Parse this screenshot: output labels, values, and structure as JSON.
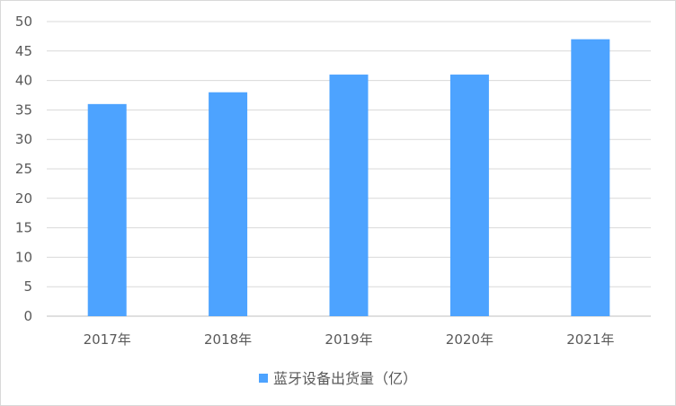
{
  "chart_data": {
    "type": "bar",
    "categories": [
      "2017年",
      "2018年",
      "2019年",
      "2020年",
      "2021年"
    ],
    "series": [
      {
        "name": "蓝牙设备出货量（亿）",
        "values": [
          36,
          38,
          41,
          41,
          47
        ],
        "color": "#4da3ff"
      }
    ],
    "ylim": [
      0,
      50
    ],
    "yticks": [
      0,
      5,
      10,
      15,
      20,
      25,
      30,
      35,
      40,
      45,
      50
    ],
    "grid": true,
    "legend": "bottom"
  }
}
